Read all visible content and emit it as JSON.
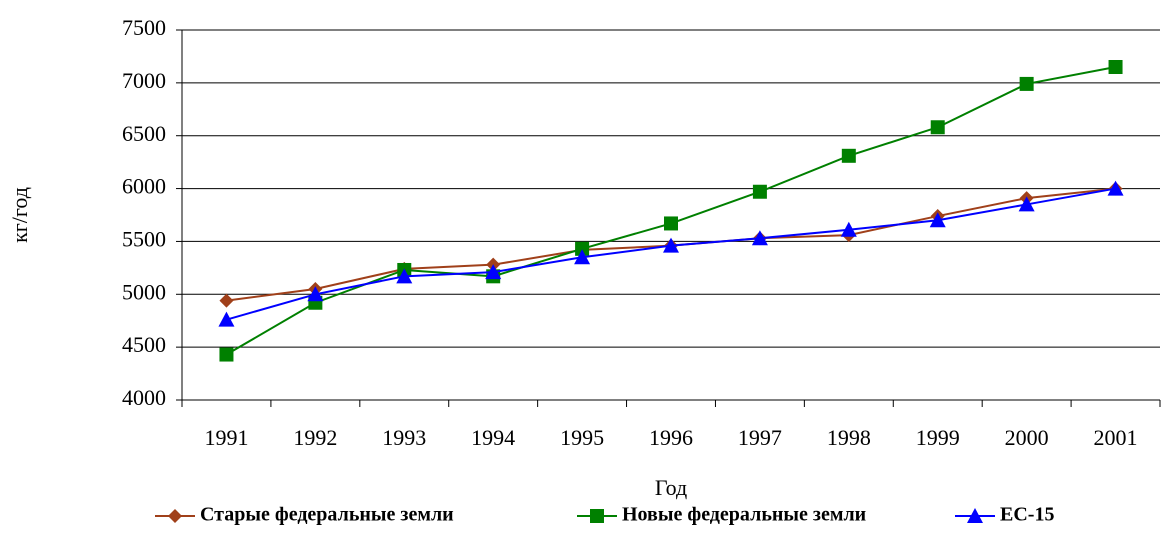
{
  "chart_data": {
    "type": "line",
    "x_label": "Год",
    "y_label": "кг/год",
    "categories": [
      "1991",
      "1992",
      "1993",
      "1994",
      "1995",
      "1996",
      "1997",
      "1998",
      "1999",
      "2000",
      "2001"
    ],
    "series": [
      {
        "name": "Старые федеральные земли",
        "color": "#a0401a",
        "marker": "diamond",
        "values": [
          4940,
          5050,
          5240,
          5280,
          5420,
          5460,
          5530,
          5560,
          5740,
          5910,
          6000
        ]
      },
      {
        "name": "Новые федеральные земли",
        "color": "#008000",
        "marker": "square",
        "values": [
          4430,
          4920,
          5230,
          5170,
          5430,
          5670,
          5970,
          6310,
          6580,
          6990,
          7150
        ]
      },
      {
        "name": "ЕС-15",
        "color": "#0000ff",
        "marker": "triangle",
        "values": [
          4760,
          5000,
          5170,
          5210,
          5350,
          5460,
          5530,
          5610,
          5700,
          5850,
          6000
        ]
      }
    ],
    "ylim": [
      4000,
      7500
    ],
    "yticks": [
      4000,
      4500,
      5000,
      5500,
      6000,
      6500,
      7000,
      7500
    ],
    "grid": true,
    "legend": "bottom"
  }
}
